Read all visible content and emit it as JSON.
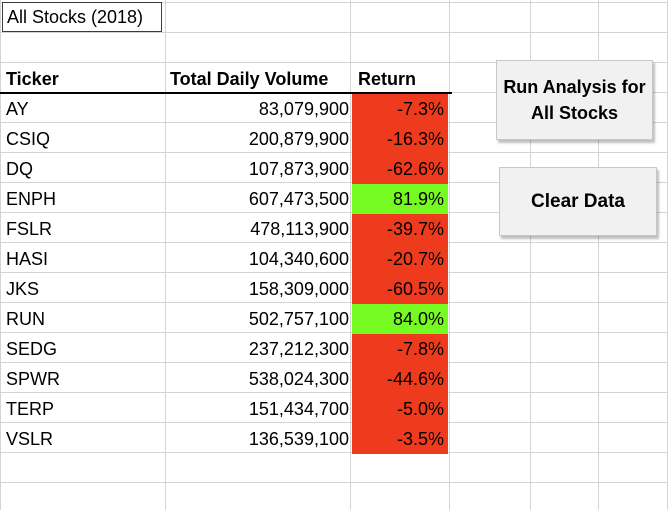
{
  "sheet": {
    "title": "All Stocks (2018)",
    "headers": {
      "ticker": "Ticker",
      "volume": "Total Daily Volume",
      "return": "Return"
    },
    "rows": [
      {
        "ticker": "AY",
        "volume": "83,079,900",
        "return": "-7.3%",
        "status": "negative"
      },
      {
        "ticker": "CSIQ",
        "volume": "200,879,900",
        "return": "-16.3%",
        "status": "negative"
      },
      {
        "ticker": "DQ",
        "volume": "107,873,900",
        "return": "-62.6%",
        "status": "negative"
      },
      {
        "ticker": "ENPH",
        "volume": "607,473,500",
        "return": "81.9%",
        "status": "positive"
      },
      {
        "ticker": "FSLR",
        "volume": "478,113,900",
        "return": "-39.7%",
        "status": "negative"
      },
      {
        "ticker": "HASI",
        "volume": "104,340,600",
        "return": "-20.7%",
        "status": "negative"
      },
      {
        "ticker": "JKS",
        "volume": "158,309,000",
        "return": "-60.5%",
        "status": "negative"
      },
      {
        "ticker": "RUN",
        "volume": "502,757,100",
        "return": "84.0%",
        "status": "positive"
      },
      {
        "ticker": "SEDG",
        "volume": "237,212,300",
        "return": "-7.8%",
        "status": "negative"
      },
      {
        "ticker": "SPWR",
        "volume": "538,024,300",
        "return": "-44.6%",
        "status": "negative"
      },
      {
        "ticker": "TERP",
        "volume": "151,434,700",
        "return": "-5.0%",
        "status": "negative"
      },
      {
        "ticker": "VSLR",
        "volume": "136,539,100",
        "return": "-3.5%",
        "status": "negative"
      }
    ]
  },
  "buttons": {
    "run_line1": "Run Analysis for",
    "run_line2": "All Stocks",
    "clear": "Clear Data"
  },
  "colors": {
    "negative": "#ee3b1e",
    "positive": "#75fa22",
    "gridline": "#d4d4d4"
  }
}
